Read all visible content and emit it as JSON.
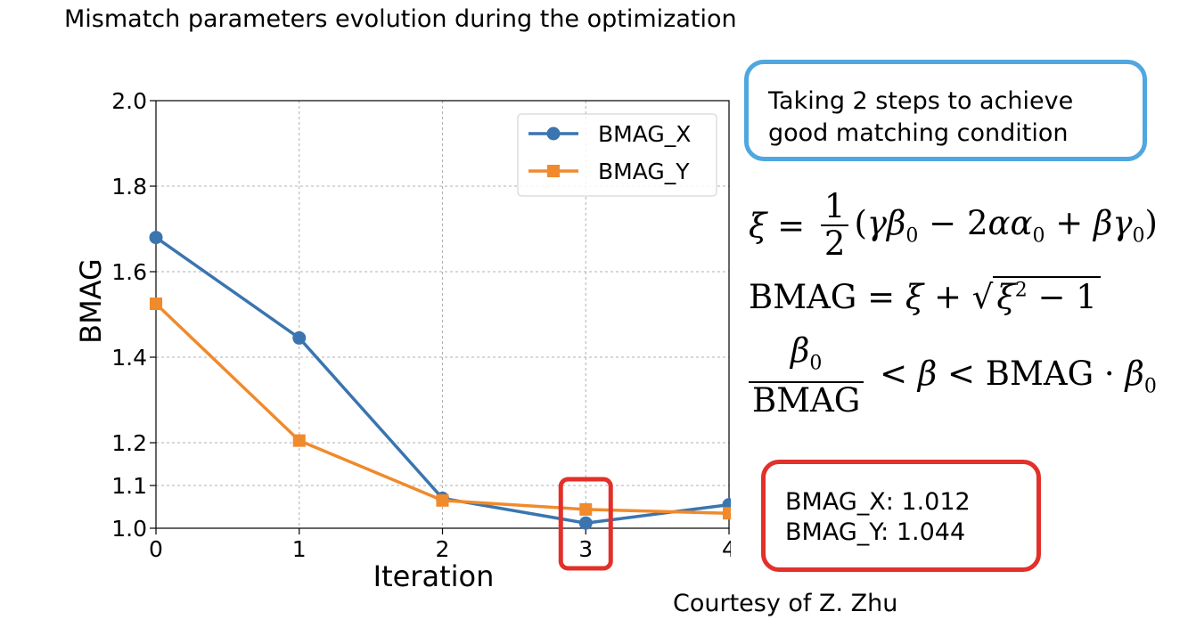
{
  "slide": {
    "title": "Mismatch parameters evolution during the optimization",
    "callout_text_line1": "Taking 2 steps to achieve",
    "callout_text_line2": "good matching condition",
    "result_line1": "BMAG_X: 1.012",
    "result_line2": "BMAG_Y: 1.044",
    "credit": "Courtesy of Z. Zhu",
    "callout_color": "#4fa7e0",
    "highlight_color": "#e2302a"
  },
  "equations": {
    "eq1": "ξ = 1/2 (γβ0 − 2αα0 + βγ0)",
    "eq2": "BMAG = ξ + √(ξ² − 1)",
    "eq3": "β0/BMAG < β < BMAG · β0"
  },
  "chart_data": {
    "type": "line",
    "xlabel": "Iteration",
    "ylabel": "BMAG",
    "x": [
      0,
      1,
      2,
      3,
      4
    ],
    "xlim": [
      0,
      4
    ],
    "ylim": [
      1.0,
      2.0
    ],
    "xticks": [
      "0",
      "1",
      "2",
      "3",
      "4"
    ],
    "yticks": [
      "1.0",
      "1.1",
      "1.2",
      "1.4",
      "1.6",
      "1.8",
      "2.0"
    ],
    "ytick_values": [
      1.0,
      1.1,
      1.2,
      1.4,
      1.6,
      1.8,
      2.0
    ],
    "grid": true,
    "legend": "top-right",
    "highlight_x": 3,
    "series": [
      {
        "name": "BMAG_X",
        "values": [
          1.68,
          1.445,
          1.07,
          1.012,
          1.055
        ],
        "color": "#3a75b0",
        "marker": "circle"
      },
      {
        "name": "BMAG_Y",
        "values": [
          1.525,
          1.205,
          1.065,
          1.044,
          1.035
        ],
        "color": "#f08a2b",
        "marker": "square"
      }
    ]
  }
}
